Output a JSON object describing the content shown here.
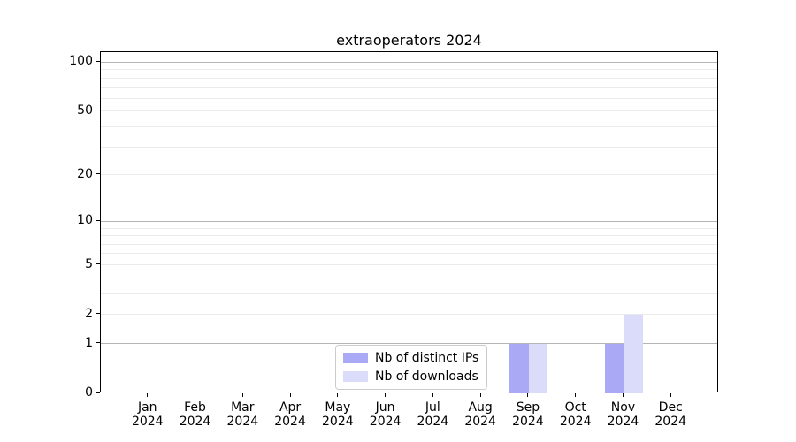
{
  "title": "extraoperators 2024",
  "colors": {
    "distinct_ips_bar": "#a9a9f5",
    "downloads_bar": "#dbdbfa",
    "grid_major": "#b5b5b5",
    "grid_minor": "#eaeaea",
    "axis_line": "#000000",
    "legend_border": "#cccccc",
    "background": "#ffffff"
  },
  "chart_data": {
    "type": "bar",
    "title": "extraoperators 2024",
    "categories": [
      "Jan",
      "Feb",
      "Mar",
      "Apr",
      "May",
      "Jun",
      "Jul",
      "Aug",
      "Sep",
      "Oct",
      "Nov",
      "Dec"
    ],
    "year": "2024",
    "series": [
      {
        "name": "Nb of distinct IPs",
        "color": "#a9a9f5",
        "values": [
          0,
          0,
          0,
          0,
          0,
          0,
          0,
          0,
          1,
          0,
          1,
          0
        ]
      },
      {
        "name": "Nb of downloads",
        "color": "#dbdbfa",
        "values": [
          0,
          0,
          0,
          0,
          0,
          0,
          0,
          0,
          1,
          0,
          2,
          0
        ]
      }
    ],
    "xlabel": "",
    "ylabel": "",
    "yscale": "log1p",
    "ylim": [
      0,
      115
    ],
    "yticks": [
      0,
      1,
      2,
      5,
      10,
      20,
      50,
      100
    ],
    "grid": {
      "orientation": "horizontal",
      "major_values": [
        1,
        10,
        100
      ],
      "minor_values": [
        2,
        3,
        4,
        5,
        6,
        7,
        8,
        9,
        20,
        30,
        40,
        50,
        60,
        70,
        80,
        90
      ]
    },
    "legend_position": "inside-bottom-center"
  }
}
